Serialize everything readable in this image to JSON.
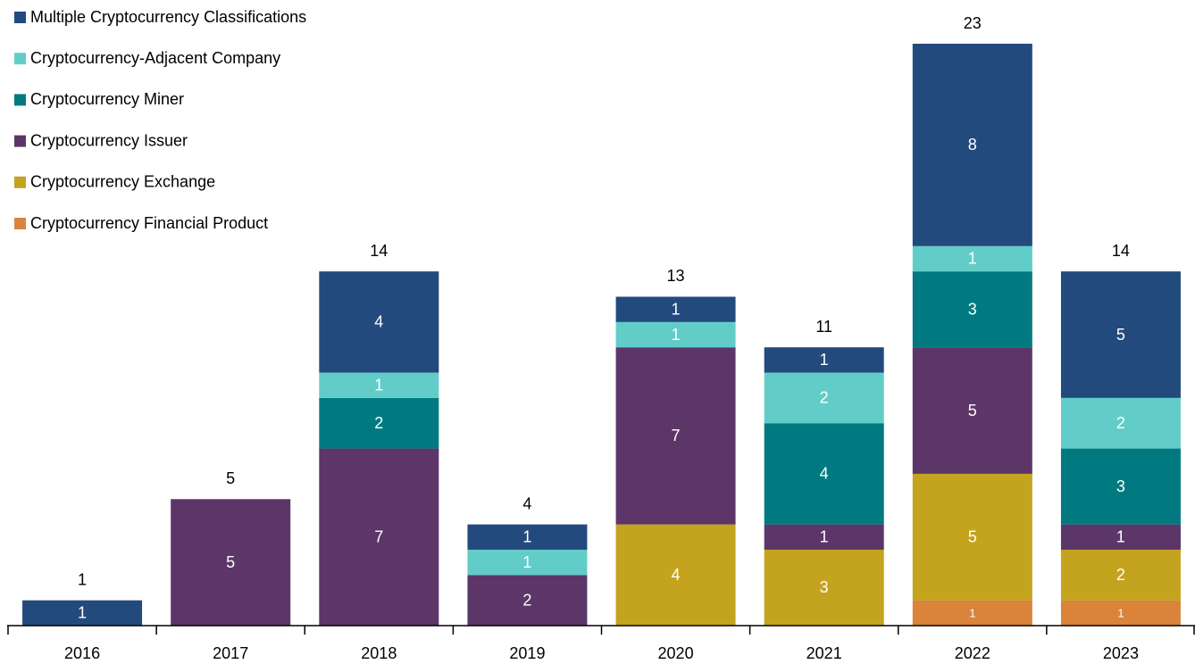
{
  "chart_data": {
    "type": "stacked_bar",
    "categories": [
      "2016",
      "2017",
      "2018",
      "2019",
      "2020",
      "2021",
      "2022",
      "2023"
    ],
    "series": [
      {
        "name": "Cryptocurrency Financial Product",
        "color": "#d9843a",
        "values": [
          null,
          null,
          null,
          null,
          null,
          null,
          1,
          1
        ]
      },
      {
        "name": "Cryptocurrency Exchange",
        "color": "#c4a31f",
        "values": [
          null,
          null,
          null,
          null,
          4,
          3,
          5,
          2
        ]
      },
      {
        "name": "Cryptocurrency Issuer",
        "color": "#5c3668",
        "values": [
          null,
          5,
          7,
          2,
          7,
          1,
          5,
          1
        ]
      },
      {
        "name": "Cryptocurrency Miner",
        "color": "#007a80",
        "values": [
          null,
          null,
          2,
          null,
          null,
          4,
          3,
          3
        ]
      },
      {
        "name": "Cryptocurrency-Adjacent Company",
        "color": "#62cdc8",
        "values": [
          null,
          null,
          1,
          1,
          1,
          2,
          1,
          2
        ]
      },
      {
        "name": "Multiple Cryptocurrency Classifications",
        "color": "#234a7c",
        "values": [
          1,
          null,
          4,
          1,
          1,
          1,
          8,
          5
        ]
      }
    ],
    "totals": [
      1,
      5,
      14,
      4,
      13,
      11,
      23,
      14
    ],
    "legend": "top-left"
  }
}
